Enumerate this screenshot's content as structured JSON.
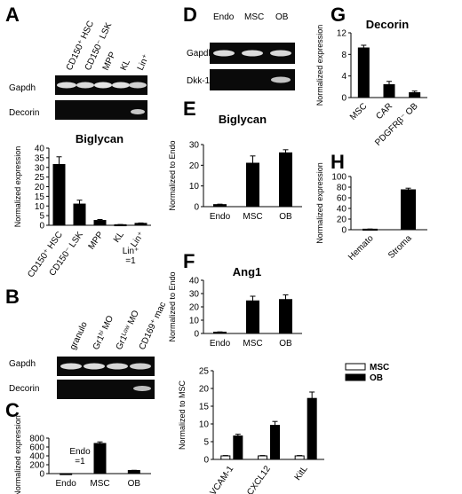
{
  "panels": {
    "A": {
      "letter": "A",
      "gel_columns": [
        "CD150⁺ HSC",
        "CD150⁻ LSK",
        "MPP",
        "KL",
        "Lin⁺"
      ],
      "gel_rows": [
        "Gapdh",
        "Decorin"
      ]
    },
    "B": {
      "letter": "B",
      "gel_columns": [
        "granulo",
        "Gr1ʰⁱ MO",
        "Gr1ᴸᵒʷ MO",
        "CD169⁺ mac"
      ],
      "gel_rows": [
        "Gapdh",
        "Decorin"
      ]
    },
    "C": {
      "letter": "C"
    },
    "D": {
      "letter": "D",
      "gel_columns": [
        "Endo",
        "MSC",
        "OB"
      ],
      "gel_rows": [
        "Gapdh",
        "Dkk-1"
      ]
    },
    "E": {
      "letter": "E"
    },
    "F": {
      "letter": "F"
    },
    "G": {
      "letter": "G"
    },
    "H": {
      "letter": "H"
    }
  },
  "chart_data": [
    {
      "id": "A-biglycan",
      "type": "bar",
      "title": "Biglycan",
      "ylabel": "Normalized expression",
      "categories": [
        "CD150⁺ HSC",
        "CD150⁻ LSK",
        "MPP",
        "KL",
        "Lin⁺"
      ],
      "values": [
        31.5,
        11,
        2.5,
        0.3,
        1
      ],
      "errors": [
        4,
        2,
        0.5,
        0.1,
        0.2
      ],
      "ylim": [
        0,
        40
      ],
      "yticks": [
        0,
        5,
        10,
        15,
        20,
        25,
        30,
        35,
        40
      ],
      "annotation": "Lin⁺ =1"
    },
    {
      "id": "C",
      "type": "bar",
      "title": "",
      "ylabel": "Normalized expression",
      "categories": [
        "Endo",
        "MSC",
        "OB"
      ],
      "values": [
        1,
        680,
        70
      ],
      "errors": [
        0,
        35,
        5
      ],
      "ylim": [
        0,
        800
      ],
      "yticks": [
        0,
        200,
        400,
        600,
        800
      ],
      "annotation": "Endo =1"
    },
    {
      "id": "E",
      "type": "bar",
      "title": "Biglycan",
      "ylabel": "Normalized to Endo",
      "categories": [
        "Endo",
        "MSC",
        "OB"
      ],
      "values": [
        1,
        21,
        26
      ],
      "errors": [
        0.2,
        3.5,
        1.5
      ],
      "ylim": [
        0,
        30
      ],
      "yticks": [
        0,
        10,
        20,
        30
      ]
    },
    {
      "id": "F-ang1",
      "type": "bar",
      "title": "Ang1",
      "ylabel": "Normalized to Endo",
      "categories": [
        "Endo",
        "MSC",
        "OB"
      ],
      "values": [
        1,
        24.5,
        25.5
      ],
      "errors": [
        0.2,
        3.5,
        3.5
      ],
      "ylim": [
        0,
        40
      ],
      "yticks": [
        0,
        10,
        20,
        30,
        40
      ]
    },
    {
      "id": "F-msc-ob",
      "type": "bar",
      "title": "",
      "ylabel": "Normalized to MSC",
      "categories": [
        "VCAM-1",
        "CXCL12",
        "KitL"
      ],
      "series": [
        {
          "name": "MSC",
          "values": [
            1,
            1,
            1
          ],
          "errors": [
            0.1,
            0.1,
            0.1
          ],
          "color": "#ffffff"
        },
        {
          "name": "OB",
          "values": [
            6.6,
            9.6,
            17.2
          ],
          "errors": [
            0.5,
            1.1,
            1.8
          ],
          "color": "#000000"
        }
      ],
      "ylim": [
        0,
        25
      ],
      "yticks": [
        0,
        5,
        10,
        15,
        20,
        25
      ]
    },
    {
      "id": "G",
      "type": "bar",
      "title": "Decorin",
      "ylabel": "Normalized expression",
      "categories": [
        "MSC",
        "CAR",
        "PDGFRβ⁻ OB"
      ],
      "values": [
        9.2,
        2.4,
        0.9
      ],
      "errors": [
        0.5,
        0.6,
        0.3
      ],
      "ylim": [
        0,
        12
      ],
      "yticks": [
        0,
        4,
        8,
        12
      ]
    },
    {
      "id": "H",
      "type": "bar",
      "title": "",
      "ylabel": "Normalized expression",
      "categories": [
        "Hemato",
        "Stroma"
      ],
      "values": [
        1,
        75
      ],
      "errors": [
        0.3,
        3
      ],
      "ylim": [
        0,
        100
      ],
      "yticks": [
        0,
        20,
        40,
        60,
        80,
        100
      ]
    }
  ]
}
